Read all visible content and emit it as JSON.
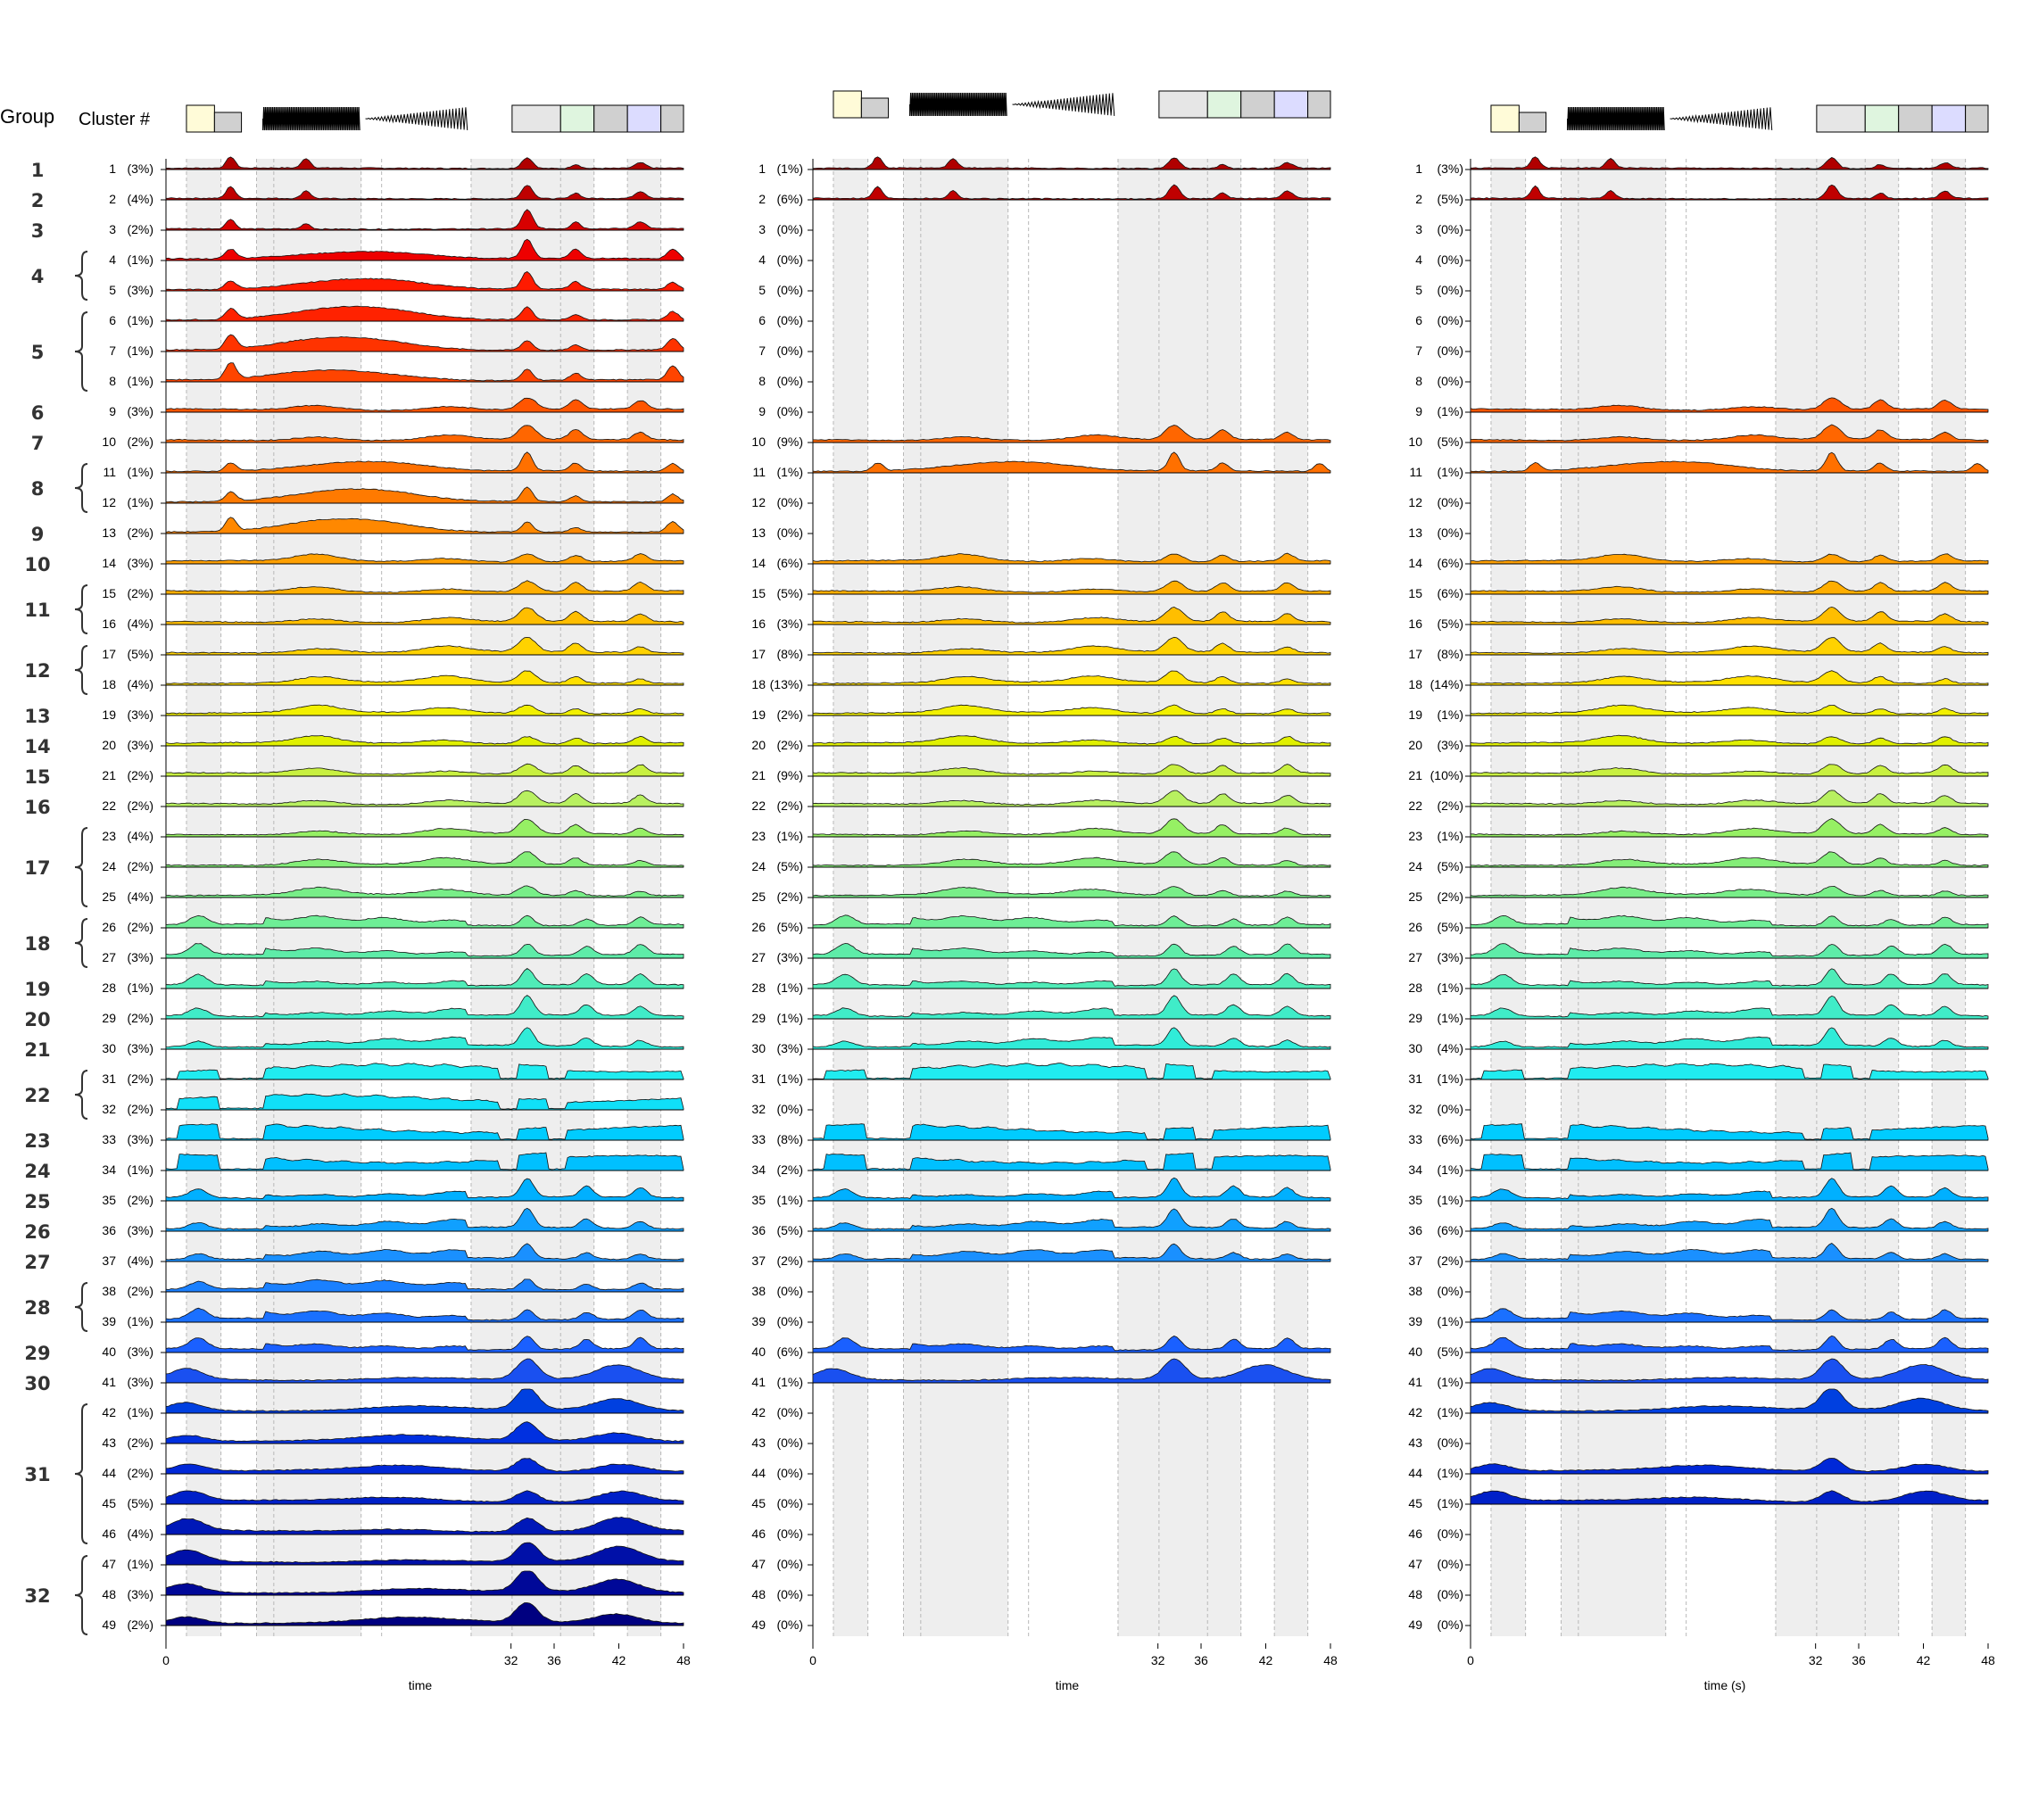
{
  "header": {
    "group_label": "Group",
    "cluster_label": "Cluster #"
  },
  "chart_data": {
    "type": "area",
    "panel_count": 3,
    "x_range": [
      0,
      48
    ],
    "x_ticks": [
      0,
      32,
      36,
      42,
      48
    ],
    "x_labels": [
      "time",
      "time",
      "time (s)"
    ],
    "stimulus_shading": [
      {
        "from": 1.9,
        "to": 5.1
      },
      {
        "from": 8.4,
        "to": 18.1
      },
      {
        "from": 28.3,
        "to": 32.1
      },
      {
        "from": 32.1,
        "to": 36.6
      },
      {
        "from": 36.6,
        "to": 39.7
      },
      {
        "from": 42.8,
        "to": 45.9
      }
    ],
    "dashed_lines": [
      1.9,
      5.1,
      8.4,
      10.0,
      18.1,
      20.0,
      28.3,
      32.1,
      36.6,
      39.7,
      42.8,
      45.9
    ],
    "colors": [
      "#b00000",
      "#c00000",
      "#d80000",
      "#ee0000",
      "#ff1a00",
      "#ff2200",
      "#ff3300",
      "#ff4400",
      "#ff5500",
      "#ff6600",
      "#ff7000",
      "#ff7a00",
      "#ff8800",
      "#ffa000",
      "#ffae00",
      "#ffbe00",
      "#ffd200",
      "#ffe000",
      "#f2f000",
      "#e0f000",
      "#c8f040",
      "#b8f060",
      "#96f064",
      "#84ee78",
      "#78ee88",
      "#6eee96",
      "#5eeca8",
      "#50ecb8",
      "#40ecc8",
      "#30ecd8",
      "#20ecf0",
      "#10e0f8",
      "#00ccff",
      "#00c0ff",
      "#00b0ff",
      "#10a0ff",
      "#1a90ff",
      "#1a80ff",
      "#1a70ff",
      "#1a60ff",
      "#1a50f0",
      "#0040e0",
      "#0030e0",
      "#0028d8",
      "#0020c8",
      "#0018b8",
      "#0010a8",
      "#000898",
      "#000080"
    ],
    "groups": [
      {
        "label": "1",
        "rows": [
          1
        ]
      },
      {
        "label": "2",
        "rows": [
          2
        ]
      },
      {
        "label": "3",
        "rows": [
          3
        ]
      },
      {
        "label": "4",
        "rows": [
          4,
          5
        ]
      },
      {
        "label": "5",
        "rows": [
          6,
          7,
          8
        ]
      },
      {
        "label": "6",
        "rows": [
          9
        ]
      },
      {
        "label": "7",
        "rows": [
          10
        ]
      },
      {
        "label": "8",
        "rows": [
          11,
          12
        ]
      },
      {
        "label": "9",
        "rows": [
          13
        ]
      },
      {
        "label": "10",
        "rows": [
          14
        ]
      },
      {
        "label": "11",
        "rows": [
          15,
          16
        ]
      },
      {
        "label": "12",
        "rows": [
          17,
          18
        ]
      },
      {
        "label": "13",
        "rows": [
          19
        ]
      },
      {
        "label": "14",
        "rows": [
          20
        ]
      },
      {
        "label": "15",
        "rows": [
          21
        ]
      },
      {
        "label": "16",
        "rows": [
          22
        ]
      },
      {
        "label": "17",
        "rows": [
          23,
          24,
          25
        ]
      },
      {
        "label": "18",
        "rows": [
          26,
          27
        ]
      },
      {
        "label": "19",
        "rows": [
          28
        ]
      },
      {
        "label": "20",
        "rows": [
          29
        ]
      },
      {
        "label": "21",
        "rows": [
          30
        ]
      },
      {
        "label": "22",
        "rows": [
          31,
          32
        ]
      },
      {
        "label": "23",
        "rows": [
          33
        ]
      },
      {
        "label": "24",
        "rows": [
          34
        ]
      },
      {
        "label": "25",
        "rows": [
          35
        ]
      },
      {
        "label": "26",
        "rows": [
          36
        ]
      },
      {
        "label": "27",
        "rows": [
          37
        ]
      },
      {
        "label": "28",
        "rows": [
          38,
          39
        ]
      },
      {
        "label": "29",
        "rows": [
          40
        ]
      },
      {
        "label": "30",
        "rows": [
          41
        ]
      },
      {
        "label": "31",
        "rows": [
          42,
          43,
          44,
          45,
          46
        ]
      },
      {
        "label": "32",
        "rows": [
          47,
          48,
          49
        ]
      }
    ],
    "series": [
      {
        "cluster": 1,
        "a": "(3%)",
        "b": "(1%)",
        "c": "(3%)",
        "kind": 0
      },
      {
        "cluster": 2,
        "a": "(4%)",
        "b": "(6%)",
        "c": "(5%)",
        "kind": 0
      },
      {
        "cluster": 3,
        "a": "(2%)",
        "b": "(0%)",
        "c": "(0%)",
        "kind": 0
      },
      {
        "cluster": 4,
        "a": "(1%)",
        "b": "(0%)",
        "c": "(0%)",
        "kind": 1
      },
      {
        "cluster": 5,
        "a": "(3%)",
        "b": "(0%)",
        "c": "(0%)",
        "kind": 1
      },
      {
        "cluster": 6,
        "a": "(1%)",
        "b": "(0%)",
        "c": "(0%)",
        "kind": 1
      },
      {
        "cluster": 7,
        "a": "(1%)",
        "b": "(0%)",
        "c": "(0%)",
        "kind": 1
      },
      {
        "cluster": 8,
        "a": "(1%)",
        "b": "(0%)",
        "c": "(0%)",
        "kind": 1
      },
      {
        "cluster": 9,
        "a": "(3%)",
        "b": "(0%)",
        "c": "(1%)",
        "kind": 2
      },
      {
        "cluster": 10,
        "a": "(2%)",
        "b": "(9%)",
        "c": "(5%)",
        "kind": 2
      },
      {
        "cluster": 11,
        "a": "(1%)",
        "b": "(1%)",
        "c": "(1%)",
        "kind": 1
      },
      {
        "cluster": 12,
        "a": "(1%)",
        "b": "(0%)",
        "c": "(0%)",
        "kind": 1
      },
      {
        "cluster": 13,
        "a": "(2%)",
        "b": "(0%)",
        "c": "(0%)",
        "kind": 1
      },
      {
        "cluster": 14,
        "a": "(3%)",
        "b": "(6%)",
        "c": "(6%)",
        "kind": 2
      },
      {
        "cluster": 15,
        "a": "(2%)",
        "b": "(5%)",
        "c": "(6%)",
        "kind": 2
      },
      {
        "cluster": 16,
        "a": "(4%)",
        "b": "(3%)",
        "c": "(5%)",
        "kind": 2
      },
      {
        "cluster": 17,
        "a": "(5%)",
        "b": "(8%)",
        "c": "(8%)",
        "kind": 2
      },
      {
        "cluster": 18,
        "a": "(4%)",
        "b": "(13%)",
        "c": "(14%)",
        "kind": 2
      },
      {
        "cluster": 19,
        "a": "(3%)",
        "b": "(2%)",
        "c": "(1%)",
        "kind": 2
      },
      {
        "cluster": 20,
        "a": "(3%)",
        "b": "(2%)",
        "c": "(3%)",
        "kind": 2
      },
      {
        "cluster": 21,
        "a": "(2%)",
        "b": "(9%)",
        "c": "(10%)",
        "kind": 2
      },
      {
        "cluster": 22,
        "a": "(2%)",
        "b": "(2%)",
        "c": "(2%)",
        "kind": 2
      },
      {
        "cluster": 23,
        "a": "(4%)",
        "b": "(1%)",
        "c": "(1%)",
        "kind": 2
      },
      {
        "cluster": 24,
        "a": "(2%)",
        "b": "(5%)",
        "c": "(5%)",
        "kind": 2
      },
      {
        "cluster": 25,
        "a": "(4%)",
        "b": "(2%)",
        "c": "(2%)",
        "kind": 2
      },
      {
        "cluster": 26,
        "a": "(2%)",
        "b": "(5%)",
        "c": "(5%)",
        "kind": 3
      },
      {
        "cluster": 27,
        "a": "(3%)",
        "b": "(3%)",
        "c": "(3%)",
        "kind": 3
      },
      {
        "cluster": 28,
        "a": "(1%)",
        "b": "(1%)",
        "c": "(1%)",
        "kind": 3
      },
      {
        "cluster": 29,
        "a": "(2%)",
        "b": "(1%)",
        "c": "(1%)",
        "kind": 3
      },
      {
        "cluster": 30,
        "a": "(3%)",
        "b": "(3%)",
        "c": "(4%)",
        "kind": 3
      },
      {
        "cluster": 31,
        "a": "(2%)",
        "b": "(1%)",
        "c": "(1%)",
        "kind": 4
      },
      {
        "cluster": 32,
        "a": "(2%)",
        "b": "(0%)",
        "c": "(0%)",
        "kind": 4
      },
      {
        "cluster": 33,
        "a": "(3%)",
        "b": "(8%)",
        "c": "(6%)",
        "kind": 4
      },
      {
        "cluster": 34,
        "a": "(1%)",
        "b": "(2%)",
        "c": "(1%)",
        "kind": 4
      },
      {
        "cluster": 35,
        "a": "(2%)",
        "b": "(1%)",
        "c": "(1%)",
        "kind": 3
      },
      {
        "cluster": 36,
        "a": "(3%)",
        "b": "(5%)",
        "c": "(6%)",
        "kind": 3
      },
      {
        "cluster": 37,
        "a": "(4%)",
        "b": "(2%)",
        "c": "(2%)",
        "kind": 3
      },
      {
        "cluster": 38,
        "a": "(2%)",
        "b": "(0%)",
        "c": "(0%)",
        "kind": 3
      },
      {
        "cluster": 39,
        "a": "(1%)",
        "b": "(0%)",
        "c": "(1%)",
        "kind": 3
      },
      {
        "cluster": 40,
        "a": "(3%)",
        "b": "(6%)",
        "c": "(5%)",
        "kind": 3
      },
      {
        "cluster": 41,
        "a": "(3%)",
        "b": "(1%)",
        "c": "(1%)",
        "kind": 5
      },
      {
        "cluster": 42,
        "a": "(1%)",
        "b": "(0%)",
        "c": "(1%)",
        "kind": 5
      },
      {
        "cluster": 43,
        "a": "(2%)",
        "b": "(0%)",
        "c": "(0%)",
        "kind": 5
      },
      {
        "cluster": 44,
        "a": "(2%)",
        "b": "(0%)",
        "c": "(1%)",
        "kind": 5
      },
      {
        "cluster": 45,
        "a": "(5%)",
        "b": "(0%)",
        "c": "(1%)",
        "kind": 5
      },
      {
        "cluster": 46,
        "a": "(4%)",
        "b": "(0%)",
        "c": "(0%)",
        "kind": 5
      },
      {
        "cluster": 47,
        "a": "(1%)",
        "b": "(0%)",
        "c": "(0%)",
        "kind": 5
      },
      {
        "cluster": 48,
        "a": "(3%)",
        "b": "(0%)",
        "c": "(0%)",
        "kind": 5
      },
      {
        "cluster": 49,
        "a": "(2%)",
        "b": "(0%)",
        "c": "(0%)",
        "kind": 5
      }
    ]
  }
}
